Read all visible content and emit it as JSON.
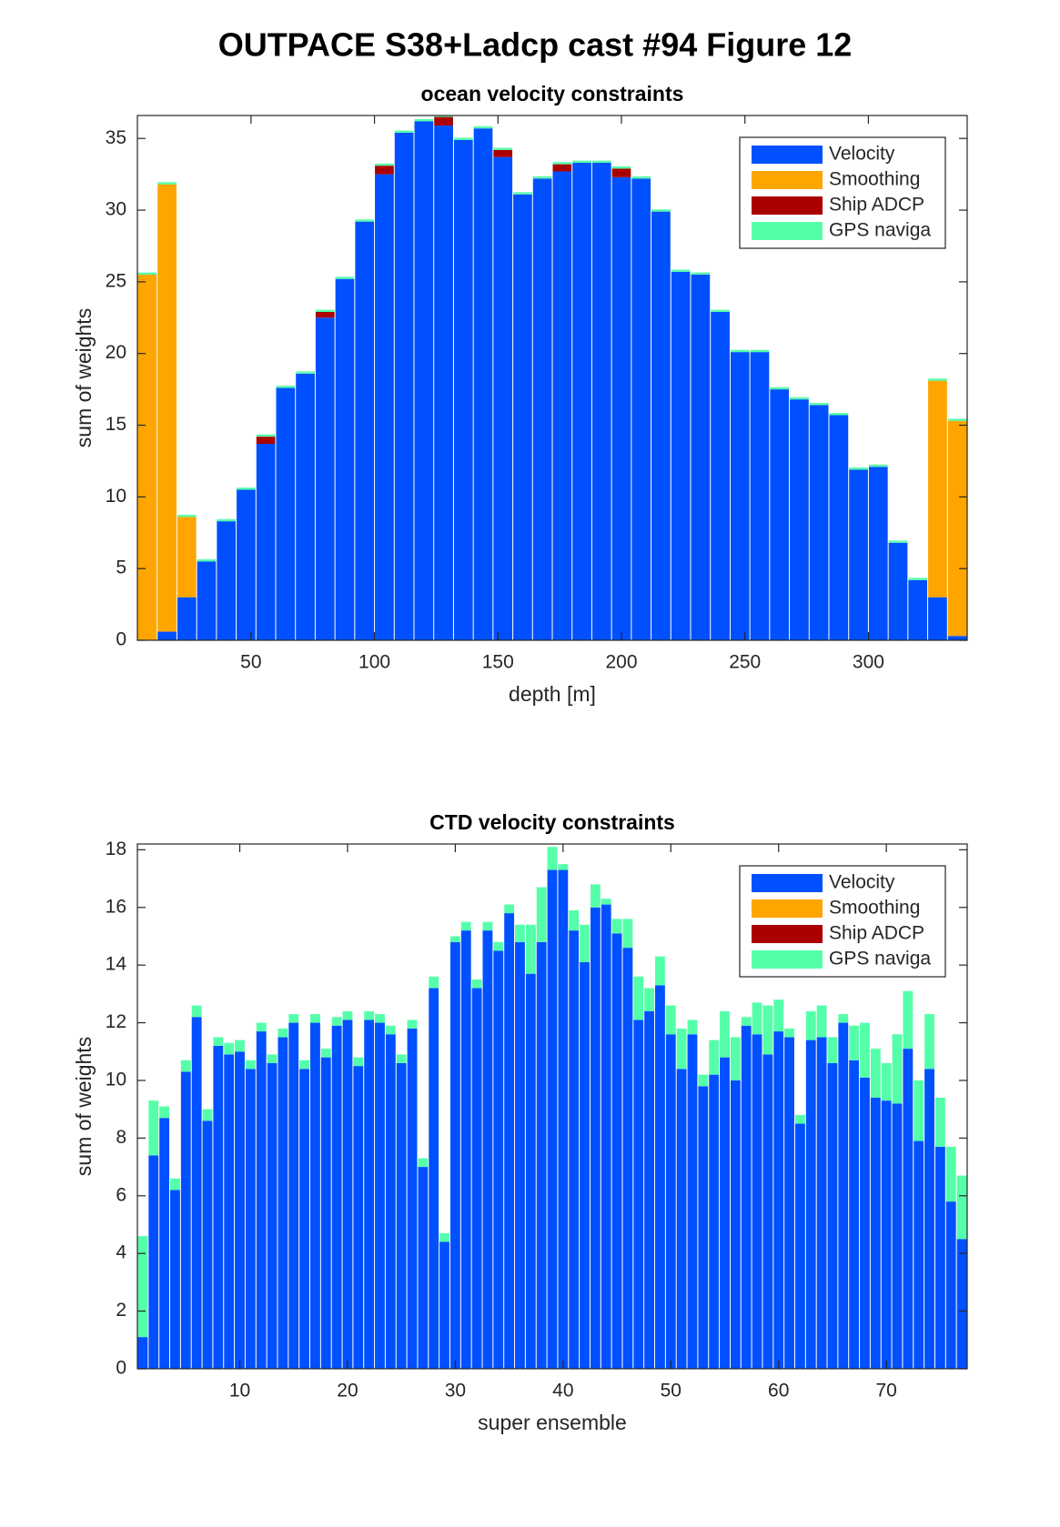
{
  "title": "OUTPACE S38+Ladcp cast #94  Figure 12",
  "chart_data": [
    {
      "type": "stacked_bar",
      "title": "ocean velocity constraints",
      "xlabel": "depth [m]",
      "ylabel": "sum of weights",
      "x": [
        8,
        16,
        24,
        32,
        40,
        48,
        56,
        64,
        72,
        80,
        88,
        96,
        104,
        112,
        120,
        128,
        136,
        144,
        152,
        160,
        168,
        176,
        184,
        192,
        200,
        208,
        216,
        224,
        232,
        240,
        248,
        256,
        264,
        272,
        280,
        288,
        296,
        304,
        312,
        320,
        328,
        336
      ],
      "xlim": [
        4,
        340
      ],
      "xticks": [
        50,
        100,
        150,
        200,
        250,
        300
      ],
      "ylim": [
        0,
        36.6
      ],
      "yticks": [
        0,
        5,
        10,
        15,
        20,
        25,
        30,
        35
      ],
      "legend": "northeast",
      "series": [
        {
          "name": "Velocity",
          "color": "#0050ff",
          "values": [
            0,
            0.6,
            3.0,
            5.5,
            8.3,
            10.5,
            13.7,
            17.6,
            18.6,
            22.5,
            25.2,
            29.2,
            32.5,
            35.4,
            36.2,
            35.9,
            34.9,
            35.7,
            33.7,
            31.1,
            32.2,
            32.7,
            33.3,
            33.3,
            32.3,
            32.2,
            29.9,
            25.7,
            25.5,
            22.9,
            20.1,
            20.1,
            17.5,
            16.8,
            16.4,
            15.7,
            11.9,
            12.1,
            6.8,
            4.2,
            3.0,
            0.3
          ]
        },
        {
          "name": "Smoothing",
          "color": "#ffa500",
          "values": [
            25.5,
            31.2,
            5.6,
            0,
            0,
            0,
            0,
            0,
            0,
            0,
            0,
            0,
            0,
            0,
            0,
            0,
            0,
            0,
            0,
            0,
            0,
            0,
            0,
            0,
            0,
            0,
            0,
            0,
            0,
            0,
            0,
            0,
            0,
            0,
            0,
            0,
            0,
            0,
            0,
            0,
            15.1,
            15.0
          ]
        },
        {
          "name": "Ship ADCP",
          "color": "#aa0000",
          "values": [
            0,
            0,
            0,
            0,
            0,
            0,
            0.5,
            0,
            0,
            0.4,
            0,
            0,
            0.6,
            0,
            0,
            0.6,
            0,
            0,
            0.5,
            0,
            0,
            0.5,
            0,
            0,
            0.6,
            0,
            0,
            0,
            0,
            0,
            0,
            0,
            0,
            0,
            0,
            0,
            0,
            0,
            0,
            0,
            0,
            0
          ]
        },
        {
          "name": "GPS naviga",
          "color": "#55ffaa",
          "values": [
            0.15,
            0.15,
            0.15,
            0.15,
            0.15,
            0.15,
            0.15,
            0.15,
            0.15,
            0.15,
            0.15,
            0.15,
            0.15,
            0.15,
            0.15,
            0.15,
            0.15,
            0.15,
            0.15,
            0.15,
            0.15,
            0.15,
            0.15,
            0.15,
            0.15,
            0.15,
            0.15,
            0.15,
            0.15,
            0.15,
            0.15,
            0.15,
            0.15,
            0.15,
            0.15,
            0.15,
            0.15,
            0.15,
            0.15,
            0.15,
            0.15,
            0.15
          ]
        }
      ]
    },
    {
      "type": "stacked_bar",
      "title": "CTD velocity constraints",
      "xlabel": "super ensemble",
      "ylabel": "sum of weights",
      "x": [
        1,
        2,
        3,
        4,
        5,
        6,
        7,
        8,
        9,
        10,
        11,
        12,
        13,
        14,
        15,
        16,
        17,
        18,
        19,
        20,
        21,
        22,
        23,
        24,
        25,
        26,
        27,
        28,
        29,
        30,
        31,
        32,
        33,
        34,
        35,
        36,
        37,
        38,
        39,
        40,
        41,
        42,
        43,
        44,
        45,
        46,
        47,
        48,
        49,
        50,
        51,
        52,
        53,
        54,
        55,
        56,
        57,
        58,
        59,
        60,
        61,
        62,
        63,
        64,
        65,
        66,
        67,
        68,
        69,
        70,
        71,
        72,
        73,
        74,
        75,
        76,
        77
      ],
      "xlim": [
        0.5,
        77.5
      ],
      "xticks": [
        10,
        20,
        30,
        40,
        50,
        60,
        70
      ],
      "ylim": [
        0,
        18.2
      ],
      "yticks": [
        0,
        2,
        4,
        6,
        8,
        10,
        12,
        14,
        16,
        18
      ],
      "legend": "northeast",
      "series": [
        {
          "name": "Velocity",
          "color": "#0050ff",
          "values": [
            1.1,
            7.4,
            8.7,
            6.2,
            10.3,
            12.2,
            8.6,
            11.2,
            10.9,
            11.0,
            10.4,
            11.7,
            10.6,
            11.5,
            12.0,
            10.4,
            12.0,
            10.8,
            11.9,
            12.1,
            10.5,
            12.1,
            12.0,
            11.6,
            10.6,
            11.8,
            7.0,
            13.2,
            4.4,
            14.8,
            15.2,
            13.2,
            15.2,
            14.5,
            15.8,
            14.8,
            13.7,
            14.8,
            17.3,
            17.3,
            15.2,
            14.1,
            16.0,
            16.1,
            15.1,
            14.6,
            12.1,
            12.4,
            13.3,
            11.6,
            10.4,
            11.6,
            9.8,
            10.2,
            10.8,
            10.0,
            11.9,
            11.6,
            10.9,
            11.7,
            11.5,
            8.5,
            11.4,
            11.5,
            10.6,
            12.0,
            10.7,
            10.1,
            9.4,
            9.3,
            9.2,
            11.1,
            7.9,
            10.4,
            7.7,
            5.8,
            4.5
          ]
        },
        {
          "name": "Smoothing",
          "color": "#ffa500",
          "values": [
            0,
            0,
            0,
            0,
            0,
            0,
            0,
            0,
            0,
            0,
            0,
            0,
            0,
            0,
            0,
            0,
            0,
            0,
            0,
            0,
            0,
            0,
            0,
            0,
            0,
            0,
            0,
            0,
            0,
            0,
            0,
            0,
            0,
            0,
            0,
            0,
            0,
            0,
            0,
            0,
            0,
            0,
            0,
            0,
            0,
            0,
            0,
            0,
            0,
            0,
            0,
            0,
            0,
            0,
            0,
            0,
            0,
            0,
            0,
            0,
            0,
            0,
            0,
            0,
            0,
            0,
            0,
            0,
            0,
            0,
            0,
            0,
            0,
            0,
            0,
            0,
            0
          ]
        },
        {
          "name": "Ship ADCP",
          "color": "#aa0000",
          "values": [
            0,
            0,
            0,
            0,
            0,
            0,
            0,
            0,
            0,
            0,
            0,
            0,
            0,
            0,
            0,
            0,
            0,
            0,
            0,
            0,
            0,
            0,
            0,
            0,
            0,
            0,
            0,
            0,
            0,
            0,
            0,
            0,
            0,
            0,
            0,
            0,
            0,
            0,
            0,
            0,
            0,
            0,
            0,
            0,
            0,
            0,
            0,
            0,
            0,
            0,
            0,
            0,
            0,
            0,
            0,
            0,
            0,
            0,
            0,
            0,
            0,
            0,
            0,
            0,
            0,
            0,
            0,
            0,
            0,
            0,
            0,
            0,
            0,
            0,
            0,
            0,
            0
          ]
        },
        {
          "name": "GPS naviga",
          "color": "#55ffaa",
          "values": [
            3.5,
            1.9,
            0.4,
            0.4,
            0.4,
            0.4,
            0.4,
            0.3,
            0.4,
            0.4,
            0.3,
            0.3,
            0.3,
            0.3,
            0.3,
            0.3,
            0.3,
            0.3,
            0.3,
            0.3,
            0.3,
            0.3,
            0.3,
            0.3,
            0.3,
            0.3,
            0.3,
            0.4,
            0.3,
            0.2,
            0.3,
            0.3,
            0.3,
            0.3,
            0.3,
            0.6,
            1.7,
            1.9,
            0.8,
            0.2,
            0.7,
            1.3,
            0.8,
            0.2,
            0.5,
            1.0,
            1.5,
            0.8,
            1.0,
            1.0,
            1.4,
            0.5,
            0.4,
            1.2,
            1.6,
            1.5,
            0.3,
            1.1,
            1.7,
            1.1,
            0.3,
            0.3,
            1.0,
            1.1,
            0.9,
            0.3,
            1.2,
            1.9,
            1.7,
            1.3,
            2.4,
            2.0,
            2.1,
            1.9,
            1.7,
            1.9,
            2.2
          ]
        }
      ]
    }
  ]
}
